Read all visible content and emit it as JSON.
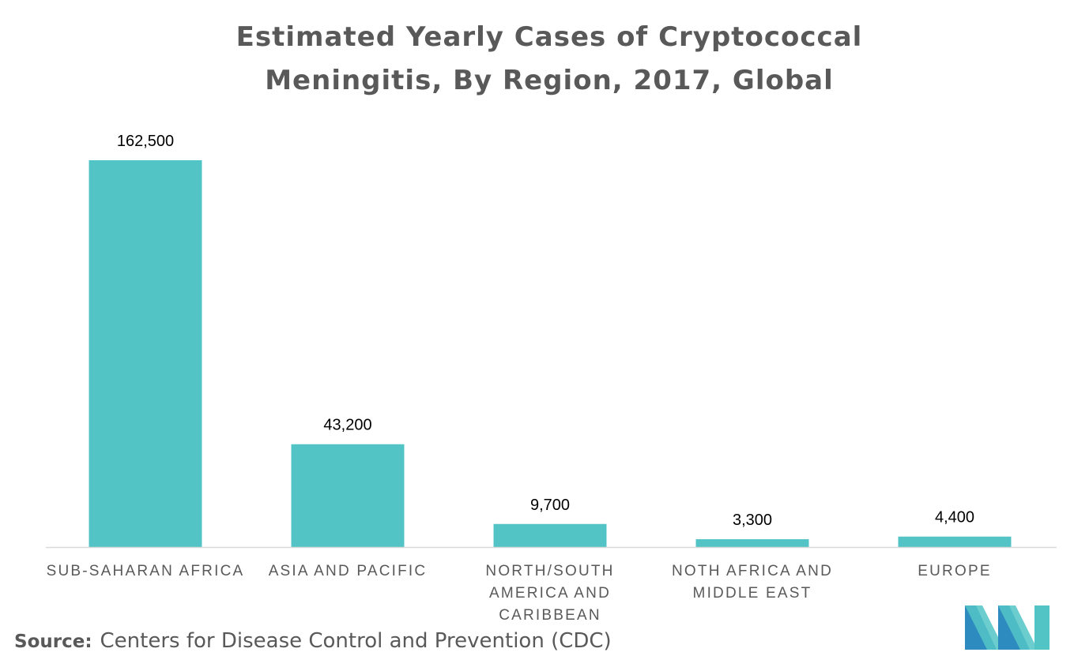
{
  "title_lines": [
    "Estimated Yearly Cases of Cryptococcal",
    "Meningitis, By Region, 2017, Global"
  ],
  "source_label": "Source:",
  "source_text": "Centers for Disease Control and Prevention (CDC)",
  "logo_icon": "mordor-intelligence-logo-icon",
  "colors": {
    "bar": "#52C4C6",
    "text": "#595959",
    "axis": "#d9d9d9",
    "logo_dark": "#2E8BBF",
    "logo_light": "#52C4C6"
  },
  "chart_data": {
    "type": "bar",
    "title": "Estimated Yearly Cases of Cryptococcal Meningitis, By Region, 2017, Global",
    "categories": [
      [
        "SUB-SAHARAN AFRICA"
      ],
      [
        "ASIA AND PACIFIC"
      ],
      [
        "NORTH/SOUTH",
        "AMERICA AND",
        "CARIBBEAN"
      ],
      [
        "NOTH AFRICA AND",
        "MIDDLE EAST"
      ],
      [
        "EUROPE"
      ]
    ],
    "values": [
      162500,
      43200,
      9700,
      3300,
      4400
    ],
    "value_labels": [
      "162,500",
      "43,200",
      "9,700",
      "3,300",
      "4,400"
    ],
    "xlabel": "",
    "ylabel": "",
    "ylim": [
      0,
      162500
    ],
    "grid": false,
    "legend": "none"
  }
}
